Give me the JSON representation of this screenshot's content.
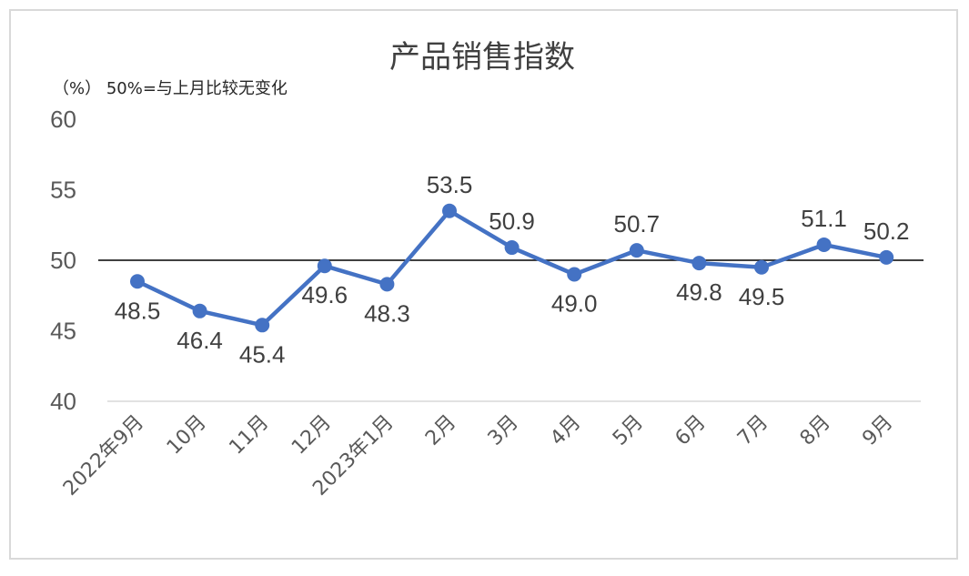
{
  "chart_data": {
    "type": "line",
    "title": "产品销售指数",
    "unit_note": "（%）  50%=与上月比较无变化",
    "categories": [
      "2022年9月",
      "10月",
      "11月",
      "12月",
      "2023年1月",
      "2月",
      "3月",
      "4月",
      "5月",
      "6月",
      "7月",
      "8月",
      "9月"
    ],
    "values": [
      48.5,
      46.4,
      45.4,
      49.6,
      48.3,
      53.5,
      50.9,
      49.0,
      50.7,
      49.8,
      49.5,
      51.1,
      50.2
    ],
    "value_labels": [
      "48.5",
      "46.4",
      "45.4",
      "49.6",
      "48.3",
      "53.5",
      "50.9",
      "49.0",
      "50.7",
      "49.8",
      "49.5",
      "51.1",
      "50.2"
    ],
    "ylim": [
      40,
      60
    ],
    "yticks": [
      "40",
      "45",
      "50",
      "55",
      "60"
    ],
    "reference_line": 50,
    "grid": false,
    "line_color": "#4472c4",
    "reference_color": "#000000"
  }
}
